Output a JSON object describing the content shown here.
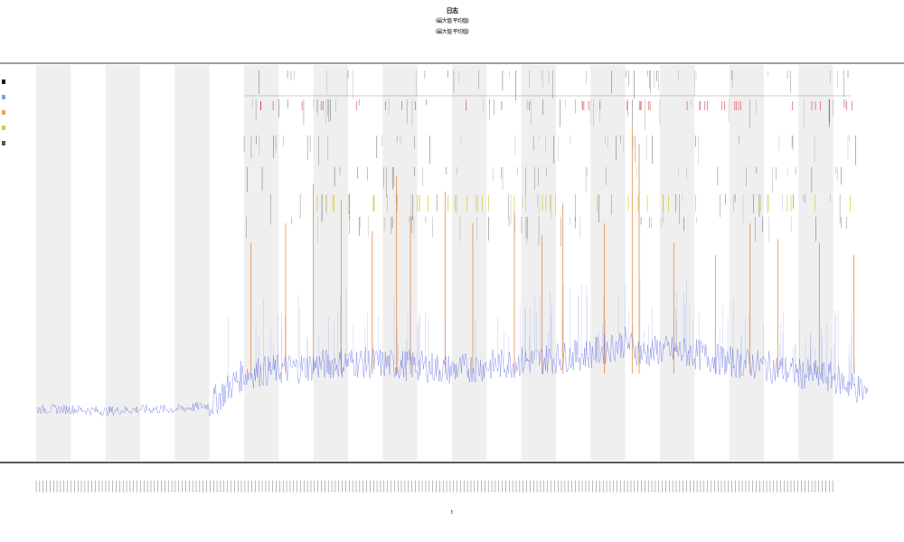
{
  "chart_data": {
    "type": "line",
    "title": "日志",
    "subtitle_lines": [
      "(最大值 平均值)",
      "(最大值 平均值)"
    ],
    "xlabel": "t",
    "ylabel": "",
    "xlim": [
      0,
      240
    ],
    "ylim": [
      0,
      100
    ],
    "grid": true,
    "band_count": 12,
    "legend_position": "top-left",
    "legend": [
      {
        "name": "",
        "color": "#1a1a1a"
      },
      {
        "name": "",
        "color": "#7aa6e0"
      },
      {
        "name": "",
        "color": "#e8a15a"
      },
      {
        "name": "",
        "color": "#d9c83a"
      },
      {
        "name": "",
        "color": "#555555"
      }
    ],
    "series": [
      {
        "role": "baseline",
        "color": "#2f3fdd",
        "x": [
          0,
          10,
          20,
          30,
          40,
          50,
          55,
          60,
          70,
          80,
          90,
          100,
          110,
          120,
          130,
          140,
          150,
          160,
          170,
          175,
          180,
          190,
          200,
          210,
          220,
          230,
          240
        ],
        "y": [
          13,
          13,
          12.5,
          13,
          13,
          14,
          18,
          22,
          23,
          24,
          25,
          24.5,
          24,
          23,
          24,
          25,
          26,
          27,
          30,
          27,
          28,
          27,
          25,
          24,
          22,
          21,
          17
        ]
      },
      {
        "role": "spikes",
        "color": "#e07a2a",
        "x": [
          62,
          72,
          80,
          88,
          97,
          104,
          108,
          118,
          126,
          138,
          146,
          152,
          164,
          172,
          174,
          184,
          196,
          206,
          214,
          226,
          236
        ],
        "y": [
          55,
          60,
          70,
          66,
          58,
          72,
          62,
          68,
          60,
          63,
          57,
          65,
          60,
          85,
          80,
          55,
          52,
          60,
          56,
          55,
          52
        ]
      }
    ],
    "x_tick_count": 230
  }
}
